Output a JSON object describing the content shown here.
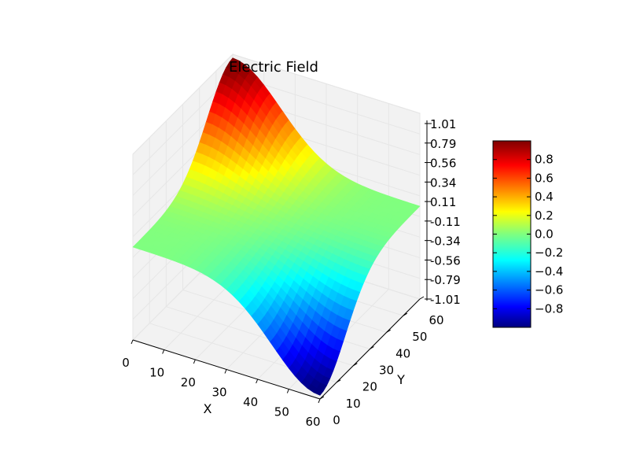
{
  "chart_data": {
    "type": "surface3d",
    "title": "Electric Field",
    "xlabel": "X",
    "ylabel": "Y",
    "zlabel": "",
    "x_ticks": [
      0,
      10,
      20,
      30,
      40,
      50,
      60
    ],
    "y_ticks": [
      0,
      10,
      20,
      30,
      40,
      50,
      60
    ],
    "z_ticks": [
      "1.01",
      "0.79",
      "0.56",
      "0.34",
      "0.11",
      "-0.11",
      "-0.34",
      "-0.56",
      "-0.79",
      "-1.01"
    ],
    "xlim": [
      0,
      60
    ],
    "ylim": [
      0,
      60
    ],
    "zlim": [
      -1.01,
      1.01
    ],
    "colormap": "jet",
    "colorbar": {
      "ticks": [
        "0.8",
        "0.6",
        "0.4",
        "0.2",
        "0.0",
        "−0.2",
        "−0.4",
        "−0.6",
        "−0.8"
      ],
      "range": [
        -0.95,
        0.95
      ]
    },
    "surface": {
      "description_of_shape": "near-zero plane with a positive ridge rising near x=0, y=60 and a negative trough falling near x=60, y=0",
      "peak": {
        "x": 0,
        "y": 60,
        "z": 0.95
      },
      "trough": {
        "x": 60,
        "y": 0,
        "z": -0.95
      }
    },
    "grid": true
  }
}
